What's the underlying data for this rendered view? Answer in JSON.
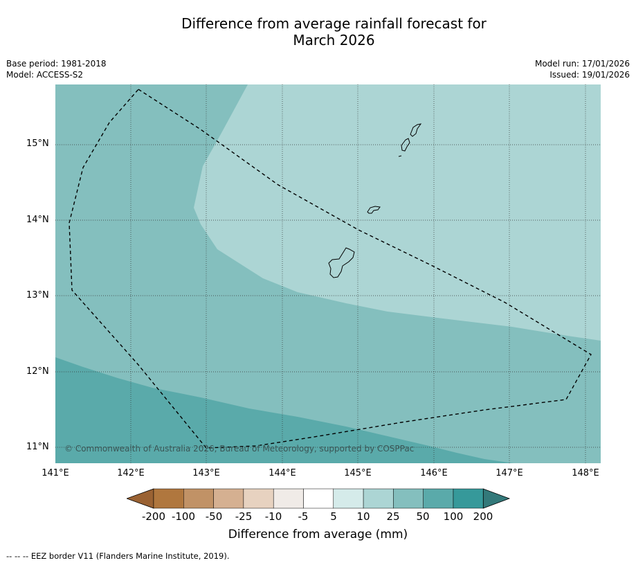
{
  "title_line1": "Difference from average rainfall forecast for",
  "title_line2": "March 2026",
  "meta": {
    "base_period": "Base period: 1981-2018",
    "model": "Model: ACCESS-S2",
    "model_run": "Model run: 17/01/2026",
    "issued": "Issued: 19/01/2026"
  },
  "map": {
    "lat_labels": [
      "15°N",
      "14°N",
      "13°N",
      "12°N",
      "11°N"
    ],
    "lon_labels": [
      "141°E",
      "142°E",
      "143°E",
      "144°E",
      "145°E",
      "146°E",
      "147°E",
      "148°E"
    ],
    "copyright": "© Commonwealth of Australia 2026, Bureau of Meteorology, supported by COSPPac"
  },
  "legend": {
    "title": "Difference from average (mm)",
    "tick_labels": [
      "-200",
      "-100",
      "-50",
      "-25",
      "-10",
      "-5",
      "5",
      "10",
      "25",
      "50",
      "100",
      "200"
    ],
    "colors": [
      "#9a6233",
      "#b0773e",
      "#c19266",
      "#d5b091",
      "#e7d2c0",
      "#f0ebe7",
      "#ffffff",
      "#d5ebea",
      "#acd5d4",
      "#84bfbe",
      "#5aaaaa",
      "#36999a",
      "#33797a"
    ]
  },
  "footnote": "--  --  -- EEZ border V11 (Flanders Marine Institute, 2019)."
}
